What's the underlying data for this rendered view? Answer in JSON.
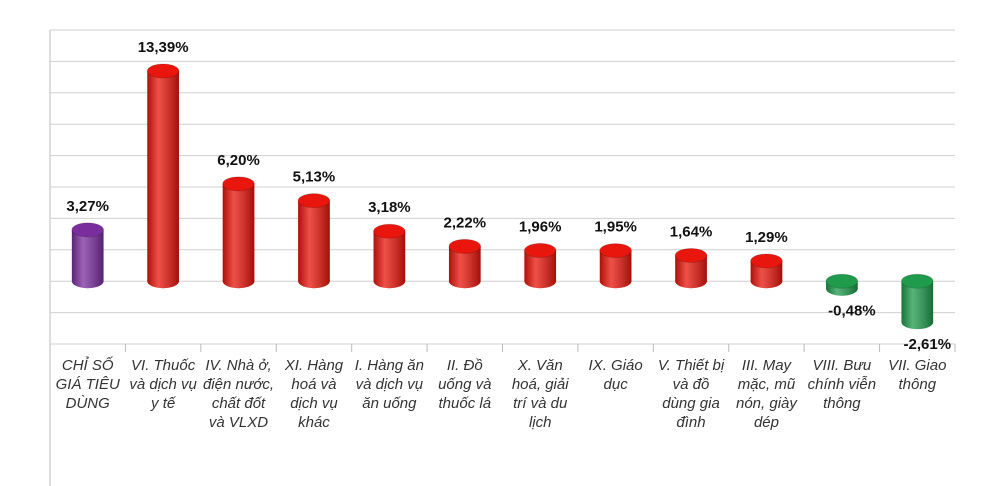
{
  "chart_data": {
    "type": "bar",
    "categories": [
      "CHỈ SỐ GIÁ TIÊU DÙNG",
      "VI. Thuốc và dịch vụ y tế",
      "IV. Nhà ở, điện nước, chất đốt và VLXD",
      "XI. Hàng hoá và dịch vụ khác",
      "I. Hàng ăn và dịch vụ ăn uống",
      "II. Đồ uống và thuốc lá",
      "X. Văn hoá, giải trí và du lịch",
      "IX. Giáo dục",
      "V. Thiết bị và đồ dùng gia đình",
      "III. May mặc, mũ nón, giày dép",
      "VIII. Bưu chính viễn thông",
      "VII. Giao thông"
    ],
    "values": [
      3.27,
      13.39,
      6.2,
      5.13,
      3.18,
      2.22,
      1.96,
      1.95,
      1.64,
      1.29,
      -0.48,
      -2.61
    ],
    "value_labels": [
      "3,27%",
      "13,39%",
      "6,20%",
      "5,13%",
      "3,18%",
      "2,22%",
      "1,96%",
      "1,95%",
      "1,64%",
      "1,29%",
      "-0,48%",
      "-2,61%"
    ],
    "colors": [
      "#7a2e9e",
      "#e8160c",
      "#e8160c",
      "#e8160c",
      "#e8160c",
      "#e8160c",
      "#e8160c",
      "#e8160c",
      "#e8160c",
      "#e8160c",
      "#1f9b4c",
      "#1f9b4c"
    ],
    "ylim": [
      -4,
      16
    ],
    "yticks": [
      -4,
      -2,
      0,
      2,
      4,
      6,
      8,
      10,
      12,
      14,
      16
    ],
    "grid": true
  }
}
